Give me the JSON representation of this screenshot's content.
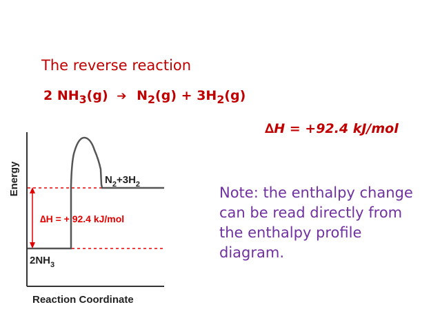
{
  "title": "The reverse reaction",
  "equation": {
    "reactant": "2 NH",
    "reactant_sub": "3",
    "reactant_state": "(g)",
    "arrow": "➔",
    "product1": "N",
    "product1_sub": "2",
    "product1_state": "(g)",
    "plus": "+",
    "product2": "3H",
    "product2_sub": "2",
    "product2_state": "(g)"
  },
  "enthalpy_change": "∆H = +92.4 kJ/mol",
  "note": "Note: the enthalpy change can be read directly from the enthalpy profile diagram.",
  "diagram": {
    "y_axis_label": "Energy",
    "x_axis_label": "Reaction Coordinate",
    "delta_h_label": "∆H = + 92.4 kJ/mol",
    "reactant_label": "2NH",
    "reactant_sub": "3",
    "product_label_a": "N",
    "product_label_a_sub": "2",
    "product_label_plus": "+3H",
    "product_label_b_sub": "2",
    "colors": {
      "curve": "#555555",
      "axis": "#333333",
      "dashed": "#e00000",
      "arrow": "#e00000"
    }
  }
}
